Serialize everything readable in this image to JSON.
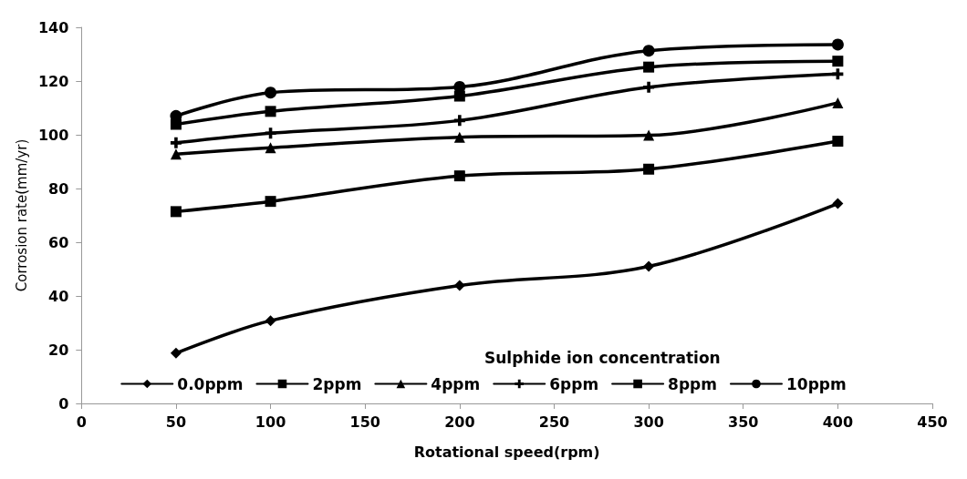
{
  "chart_data": {
    "type": "line",
    "xlabel": "Rotational speed(rpm)",
    "ylabel": "Corrosion rate(mm/yr)",
    "legend_title": "Sulphide ion concentration",
    "legend": "bottom",
    "grid": false,
    "line_style": "solid",
    "x": [
      50,
      100,
      200,
      300,
      400
    ],
    "xlim": [
      0,
      450
    ],
    "xticks": [
      0,
      50,
      100,
      150,
      200,
      250,
      300,
      350,
      400,
      450
    ],
    "ylim": [
      0,
      140
    ],
    "yticks": [
      0,
      20,
      40,
      60,
      80,
      100,
      120,
      140
    ],
    "series": [
      {
        "name": "0.0ppm",
        "color": "#000000",
        "marker": "diamond",
        "values": [
          18.7,
          30.8,
          43.9,
          51,
          74.4
        ]
      },
      {
        "name": "2ppm",
        "color": "#000000",
        "marker": "square",
        "values": [
          71.4,
          75.2,
          84.7,
          87.2,
          97.6
        ]
      },
      {
        "name": "4ppm",
        "color": "#000000",
        "marker": "triangle",
        "values": [
          92.8,
          95.2,
          99.1,
          99.8,
          111.9
        ]
      },
      {
        "name": "6ppm",
        "color": "#000000",
        "marker": "cross",
        "values": [
          97,
          100.6,
          105.3,
          117.7,
          122.6
        ]
      },
      {
        "name": "8ppm",
        "color": "#000000",
        "marker": "square",
        "values": [
          103.9,
          108.7,
          114.4,
          125.2,
          127.4
        ]
      },
      {
        "name": "10ppm",
        "color": "#000000",
        "marker": "circle",
        "values": [
          107,
          115.7,
          117.8,
          131.3,
          133.6
        ]
      }
    ]
  }
}
